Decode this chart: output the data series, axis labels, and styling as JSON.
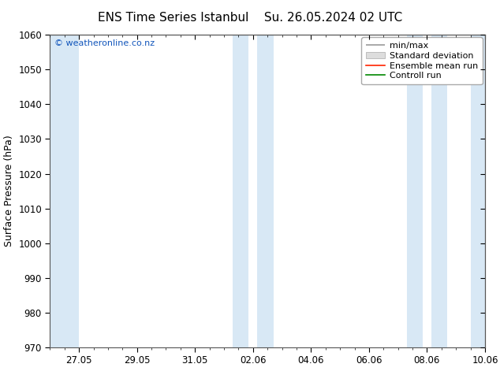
{
  "title_left": "ENS Time Series Istanbul",
  "title_right": "Su. 26.05.2024 02 UTC",
  "ylabel": "Surface Pressure (hPa)",
  "ylim": [
    970,
    1060
  ],
  "yticks": [
    970,
    980,
    990,
    1000,
    1010,
    1020,
    1030,
    1040,
    1050,
    1060
  ],
  "xtick_labels": [
    "27.05",
    "29.05",
    "31.05",
    "02.06",
    "04.06",
    "06.06",
    "08.06",
    "10.06"
  ],
  "shade_color": "#d8e8f5",
  "background_color": "#ffffff",
  "plot_bg_color": "#ffffff",
  "copyright_text": "© weatheronline.co.nz",
  "copyright_color": "#1155bb",
  "legend_labels": [
    "min/max",
    "Standard deviation",
    "Ensemble mean run",
    "Controll run"
  ],
  "legend_line_colors": [
    "#999999",
    "#cccccc",
    "#ff2200",
    "#008800"
  ],
  "title_fontsize": 11,
  "axis_label_fontsize": 9,
  "tick_fontsize": 8.5,
  "legend_fontsize": 8
}
